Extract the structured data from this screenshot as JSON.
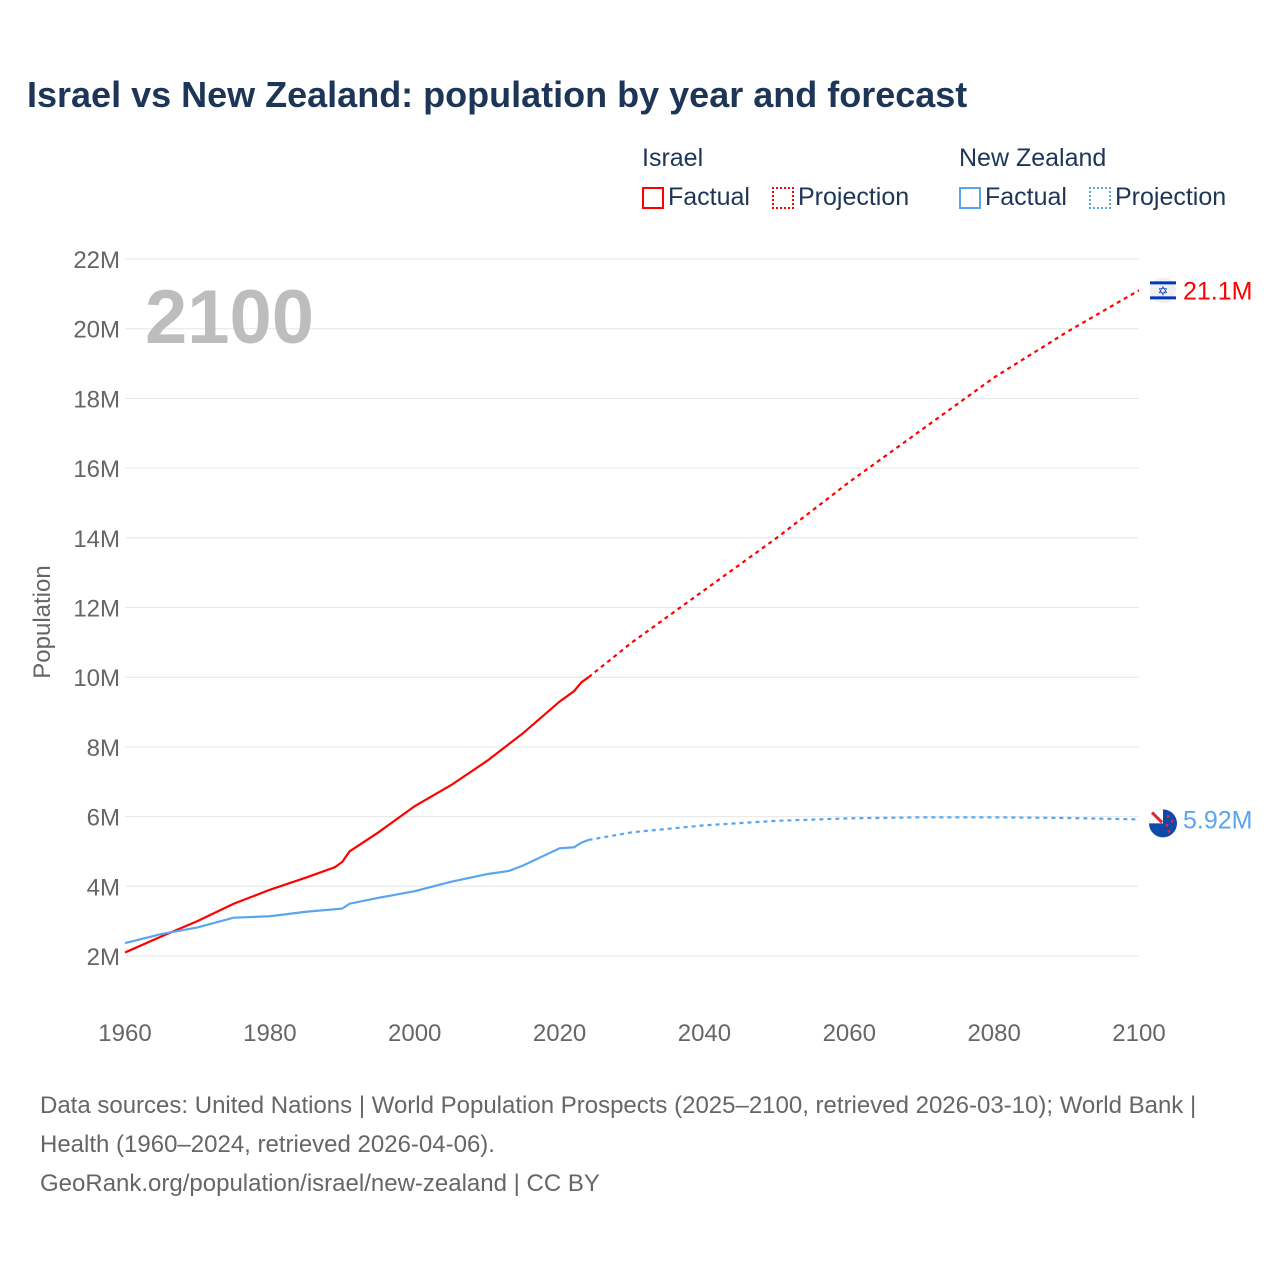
{
  "chart_data": {
    "type": "line",
    "title": "Israel vs New Zealand: population by year and forecast",
    "ylabel": "Population",
    "xlabel": "",
    "xlim": [
      1960,
      2100
    ],
    "ylim": [
      2,
      22
    ],
    "x_ticks": [
      "1960",
      "1980",
      "2000",
      "2020",
      "2040",
      "2060",
      "2080",
      "2100"
    ],
    "y_ticks": [
      "2M",
      "4M",
      "6M",
      "8M",
      "10M",
      "12M",
      "14M",
      "16M",
      "18M",
      "20M",
      "22M"
    ],
    "grid": true,
    "year_label": "2100",
    "legend": {
      "placement": "top-right",
      "groups": [
        {
          "name": "Israel",
          "factual": "Factual",
          "projection": "Projection"
        },
        {
          "name": "New Zealand",
          "factual": "Factual",
          "projection": "Projection"
        }
      ]
    },
    "series": [
      {
        "name": "Israel",
        "color": "#ff0000",
        "end_label": "21.1M",
        "factual": {
          "x": [
            1960,
            1965,
            1970,
            1975,
            1980,
            1985,
            1989,
            1990,
            1991,
            1995,
            2000,
            2005,
            2010,
            2015,
            2020,
            2022,
            2023,
            2024
          ],
          "y": [
            2.1,
            2.56,
            3.0,
            3.5,
            3.9,
            4.25,
            4.55,
            4.7,
            5.0,
            5.55,
            6.3,
            6.9,
            7.6,
            8.4,
            9.3,
            9.6,
            9.85,
            10.0
          ]
        },
        "projection": {
          "x": [
            2024,
            2030,
            2040,
            2050,
            2060,
            2070,
            2080,
            2090,
            2100
          ],
          "y": [
            10.0,
            11.0,
            12.5,
            14.0,
            15.6,
            17.1,
            18.6,
            19.9,
            21.1
          ]
        }
      },
      {
        "name": "New Zealand",
        "color": "#5aa5ec",
        "end_label": "5.92M",
        "factual": {
          "x": [
            1960,
            1965,
            1970,
            1975,
            1980,
            1985,
            1990,
            1991,
            1995,
            2000,
            2005,
            2010,
            2013,
            2015,
            2020,
            2022,
            2023,
            2024
          ],
          "y": [
            2.37,
            2.63,
            2.82,
            3.1,
            3.14,
            3.27,
            3.36,
            3.5,
            3.67,
            3.86,
            4.13,
            4.35,
            4.44,
            4.6,
            5.09,
            5.12,
            5.25,
            5.33
          ]
        },
        "projection": {
          "x": [
            2024,
            2030,
            2040,
            2050,
            2060,
            2070,
            2080,
            2090,
            2100
          ],
          "y": [
            5.33,
            5.55,
            5.75,
            5.88,
            5.95,
            5.98,
            5.98,
            5.96,
            5.92
          ]
        }
      }
    ]
  },
  "footer": {
    "sources": "Data sources: United Nations | World Population Prospects (2025–2100, retrieved 2026-03-10); World Bank | Health (1960–2024, retrieved 2026-04-06).",
    "credit": "GeoRank.org/population/israel/new-zealand | CC BY"
  }
}
